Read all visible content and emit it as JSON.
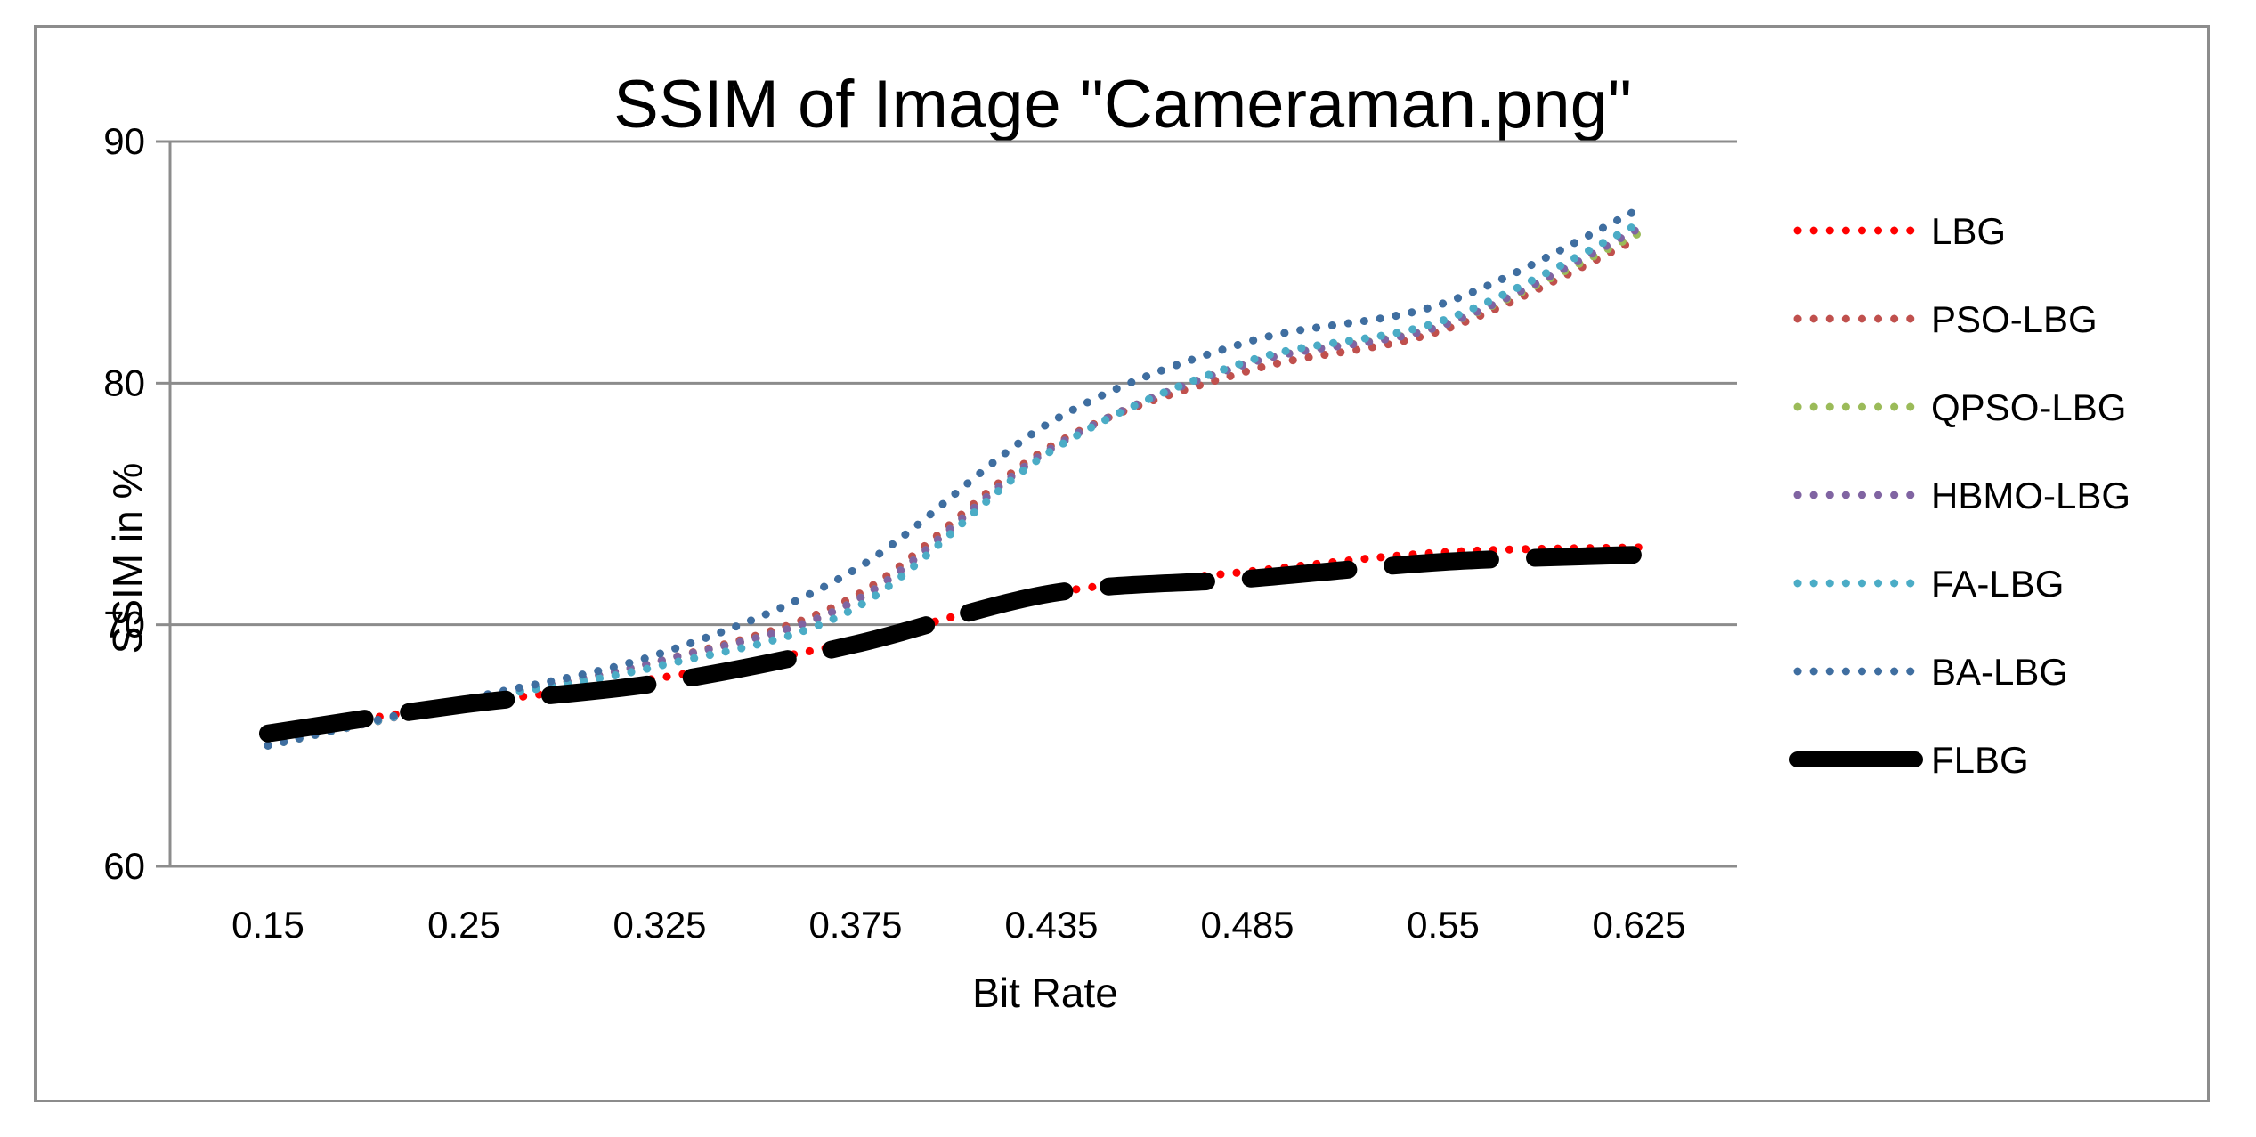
{
  "chart_data": {
    "type": "line",
    "title": "SSIM of Image \"Cameraman.png\"",
    "xlabel": "Bit Rate",
    "ylabel": "SSIM in %",
    "categories": [
      "0.15",
      "0.25",
      "0.325",
      "0.375",
      "0.435",
      "0.485",
      "0.55",
      "0.625"
    ],
    "ylim": [
      60,
      90
    ],
    "yticks": [
      60,
      70,
      80,
      90
    ],
    "grid": true,
    "legend_position": "right",
    "series": [
      {
        "name": "LBG",
        "color": "#ff0000",
        "style": "dotted",
        "values": [
          65.5,
          66.7,
          67.8,
          69.3,
          71.3,
          72.2,
          73.0,
          73.2
        ]
      },
      {
        "name": "PSO-LBG",
        "color": "#c0504d",
        "style": "dotted",
        "values": [
          65.0,
          66.8,
          68.5,
          71.2,
          77.4,
          80.5,
          82.2,
          86.0
        ]
      },
      {
        "name": "QPSO-LBG",
        "color": "#9bbb59",
        "style": "dotted",
        "values": [
          65.0,
          66.8,
          68.5,
          71.0,
          77.3,
          80.8,
          82.4,
          86.2
        ]
      },
      {
        "name": "HBMO-LBG",
        "color": "#8064a2",
        "style": "dotted",
        "values": [
          65.0,
          66.8,
          68.5,
          71.0,
          77.3,
          80.8,
          82.4,
          86.4
        ]
      },
      {
        "name": "FA-LBG",
        "color": "#4bacc6",
        "style": "dotted",
        "values": [
          65.0,
          66.8,
          68.3,
          70.7,
          77.2,
          80.9,
          82.6,
          86.6
        ]
      },
      {
        "name": "BA-LBG",
        "color": "#3f6ea0",
        "style": "dotted",
        "values": [
          65.0,
          66.9,
          68.8,
          72.3,
          78.4,
          81.7,
          83.3,
          87.2
        ]
      },
      {
        "name": "FLBG",
        "color": "#000000",
        "style": "dashed",
        "values": [
          65.5,
          66.7,
          67.6,
          69.2,
          71.3,
          71.9,
          72.6,
          72.9
        ]
      }
    ]
  }
}
